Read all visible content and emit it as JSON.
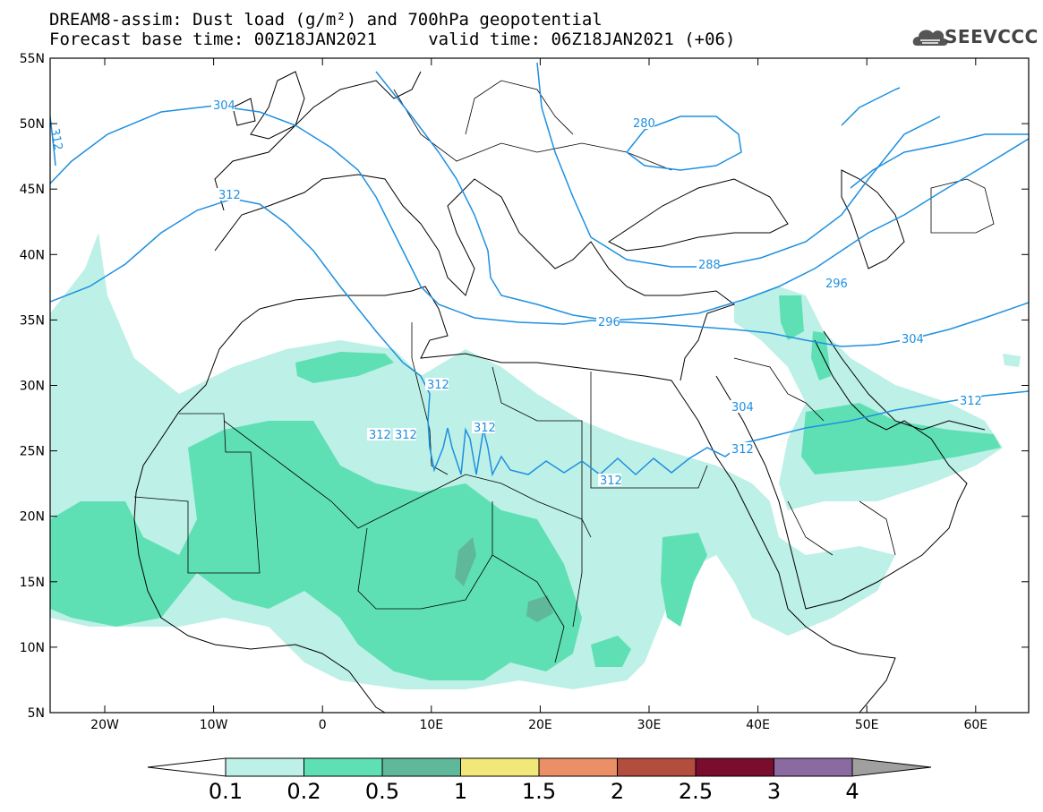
{
  "title_line1": "DREAM8-assim: Dust load (g/m²) and 700hPa geopotential",
  "title_line2": "Forecast base time: 00Z18JAN2021     valid time: 06Z18JAN2021 (+06)",
  "logo_text": "SEEVCCC",
  "lat_labels": [
    "55N",
    "50N",
    "45N",
    "40N",
    "35N",
    "30N",
    "25N",
    "20N",
    "15N",
    "10N",
    "5N"
  ],
  "lon_labels": [
    "20W",
    "10W",
    "0",
    "10E",
    "20E",
    "30E",
    "40E",
    "50E",
    "60E"
  ],
  "contour_labels": [
    "304",
    "312",
    "280",
    "288",
    "296",
    "296",
    "304",
    "304",
    "312",
    "312",
    "312",
    "312",
    "312",
    "312",
    "312",
    "312"
  ],
  "colorbar": {
    "ticks": [
      "0.1",
      "0.2",
      "0.5",
      "1",
      "1.5",
      "2",
      "2.5",
      "3",
      "4"
    ],
    "colors": [
      "#ffffff",
      "#bdf0e6",
      "#5fe0b4",
      "#5fb89a",
      "#f2e87a",
      "#eb9066",
      "#b34d3e",
      "#7a0c2e",
      "#8a6aa0",
      "#a0a0a0"
    ]
  },
  "colors": {
    "contour": "#1e90e0",
    "dust_low": "#bdf0e6",
    "dust_mid": "#5fe0b4",
    "dust_high": "#5fb89a"
  }
}
